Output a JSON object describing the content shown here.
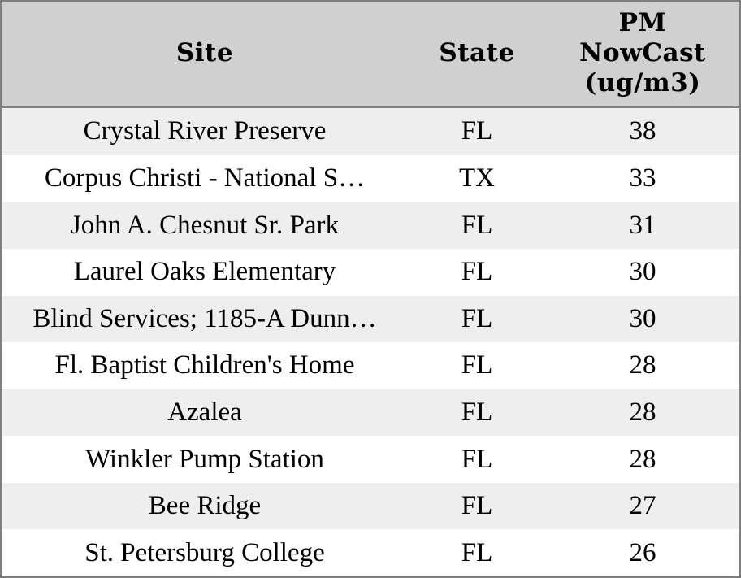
{
  "table": {
    "columns": [
      {
        "label": "Site"
      },
      {
        "label": "State"
      },
      {
        "label": "PM NowCast (ug/m3)",
        "label_lines": [
          "PM",
          "NowCast",
          "(ug/m3)"
        ]
      }
    ],
    "rows": [
      {
        "site": "Crystal River Preserve",
        "state": "FL",
        "value": "38"
      },
      {
        "site": "Corpus Christi - National S…",
        "state": "TX",
        "value": "33"
      },
      {
        "site": "John A. Chesnut Sr. Park",
        "state": "FL",
        "value": "31"
      },
      {
        "site": "Laurel Oaks Elementary",
        "state": "FL",
        "value": "30"
      },
      {
        "site": "Blind Services; 1185-A Dunn…",
        "state": "FL",
        "value": "30"
      },
      {
        "site": "Fl. Baptist Children's Home",
        "state": "FL",
        "value": "28"
      },
      {
        "site": "Azalea",
        "state": "FL",
        "value": "28"
      },
      {
        "site": "Winkler Pump Station",
        "state": "FL",
        "value": "28"
      },
      {
        "site": "Bee Ridge",
        "state": "FL",
        "value": "27"
      },
      {
        "site": "St. Petersburg College",
        "state": "FL",
        "value": "26"
      }
    ]
  },
  "colors": {
    "header_bg": "#d0d0d0",
    "row_stripe_bg": "#eeeeee",
    "row_bg": "#ffffff",
    "border": "#7f7f7f",
    "text": "#000000"
  },
  "chart_data": {
    "type": "table",
    "title": "",
    "columns": [
      "Site",
      "State",
      "PM NowCast (ug/m3)"
    ],
    "rows": [
      [
        "Crystal River Preserve",
        "FL",
        38
      ],
      [
        "Corpus Christi - National S…",
        "TX",
        33
      ],
      [
        "John A. Chesnut Sr. Park",
        "FL",
        31
      ],
      [
        "Laurel Oaks Elementary",
        "FL",
        30
      ],
      [
        "Blind Services; 1185-A Dunn…",
        "FL",
        30
      ],
      [
        "Fl. Baptist Children's Home",
        "FL",
        28
      ],
      [
        "Azalea",
        "FL",
        28
      ],
      [
        "Winkler Pump Station",
        "FL",
        28
      ],
      [
        "Bee Ridge",
        "FL",
        27
      ],
      [
        "St. Petersburg College",
        "FL",
        26
      ]
    ],
    "notes": "Rows sorted descending by PM NowCast; zebra striping on odd rows; all cells center-aligned"
  }
}
